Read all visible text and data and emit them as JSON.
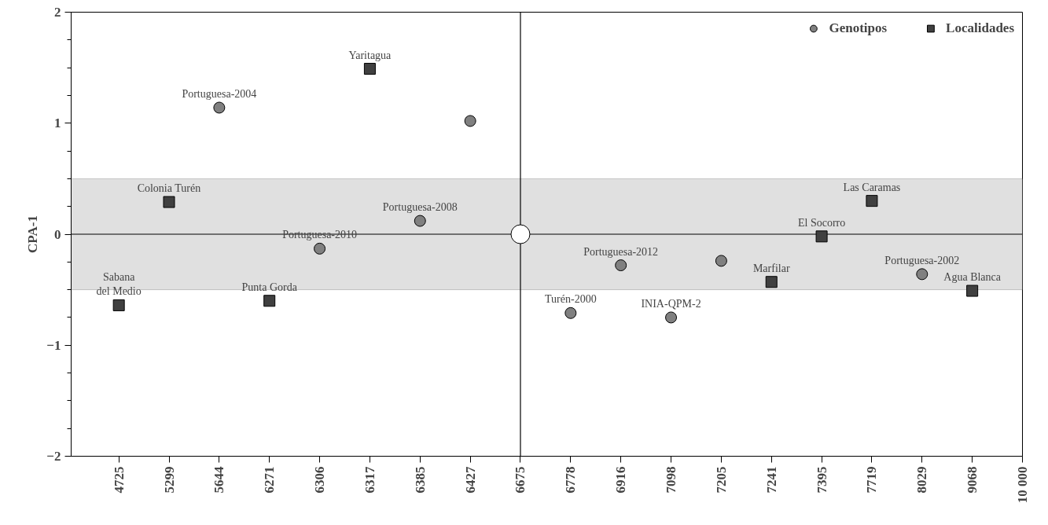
{
  "chart_data": {
    "type": "scatter",
    "ylabel": "CPA-1",
    "categories": [
      "4725",
      "5299",
      "5644",
      "6271",
      "6306",
      "6317",
      "6385",
      "6427",
      "6675",
      "6778",
      "6916",
      "7098",
      "7205",
      "7241",
      "7395",
      "7719",
      "8029",
      "9068",
      "10 000"
    ],
    "series": [
      {
        "name": "Genotipos",
        "color": "#808080",
        "marker": "circle",
        "values": [
          null,
          null,
          1.14,
          null,
          -0.13,
          null,
          0.12,
          1.02,
          null,
          -0.71,
          -0.28,
          -0.75,
          -0.24,
          null,
          null,
          null,
          -0.36,
          null,
          null
        ]
      },
      {
        "name": "Localidades",
        "color": "#404040",
        "marker": "square",
        "values": [
          -0.64,
          0.29,
          null,
          -0.6,
          null,
          1.49,
          null,
          null,
          null,
          null,
          null,
          null,
          null,
          -0.43,
          -0.02,
          0.3,
          null,
          -0.51,
          null
        ]
      },
      {
        "color": "#ffffff",
        "marker": "circle",
        "values": [
          null,
          null,
          null,
          null,
          null,
          null,
          null,
          null,
          0,
          null,
          null,
          null,
          null,
          null,
          null,
          null,
          null,
          null,
          null
        ]
      }
    ],
    "ylim": [
      -2,
      2
    ],
    "yticks": [
      -2,
      -1,
      0,
      1,
      2
    ],
    "ref_lines": [
      {
        "axis": "x",
        "value": "6675"
      },
      {
        "axis": "y",
        "value": 0
      }
    ],
    "bands": [
      {
        "axis": "y",
        "from": -0.5,
        "to": 0.5,
        "color": "#e0e0e0"
      }
    ],
    "annotations": [
      {
        "text": "Portuguesa-2004",
        "x": "5644",
        "y": 1.14
      },
      {
        "text": "Portuguesa-2010",
        "x": "6306",
        "y": -0.13
      },
      {
        "text": "Portuguesa-2008",
        "x": "6385",
        "y": 0.12
      },
      {
        "text": "Turén-2000",
        "x": "6778",
        "y": -0.71
      },
      {
        "text": "Portuguesa-2012",
        "x": "6916",
        "y": -0.28
      },
      {
        "text": "INIA-QPM-2",
        "x": "7098",
        "y": -0.75
      },
      {
        "text": "Portuguesa-2002",
        "x": "8029",
        "y": -0.36
      },
      {
        "text": "Sabana\ndel Medio",
        "x": "4725",
        "y": -0.64
      },
      {
        "text": "Colonia Turén",
        "x": "5299",
        "y": 0.29
      },
      {
        "text": "Punta Gorda",
        "x": "6271",
        "y": -0.6
      },
      {
        "text": "Yaritagua",
        "x": "6317",
        "y": 1.49
      },
      {
        "text": "Marfilar",
        "x": "7241",
        "y": -0.43
      },
      {
        "text": "El Socorro",
        "x": "7395",
        "y": -0.02
      },
      {
        "text": "Las Caramas",
        "x": "7719",
        "y": 0.3
      },
      {
        "text": "Agua Blanca",
        "x": "9068",
        "y": -0.51
      }
    ],
    "grid": false,
    "legend": "top right"
  }
}
